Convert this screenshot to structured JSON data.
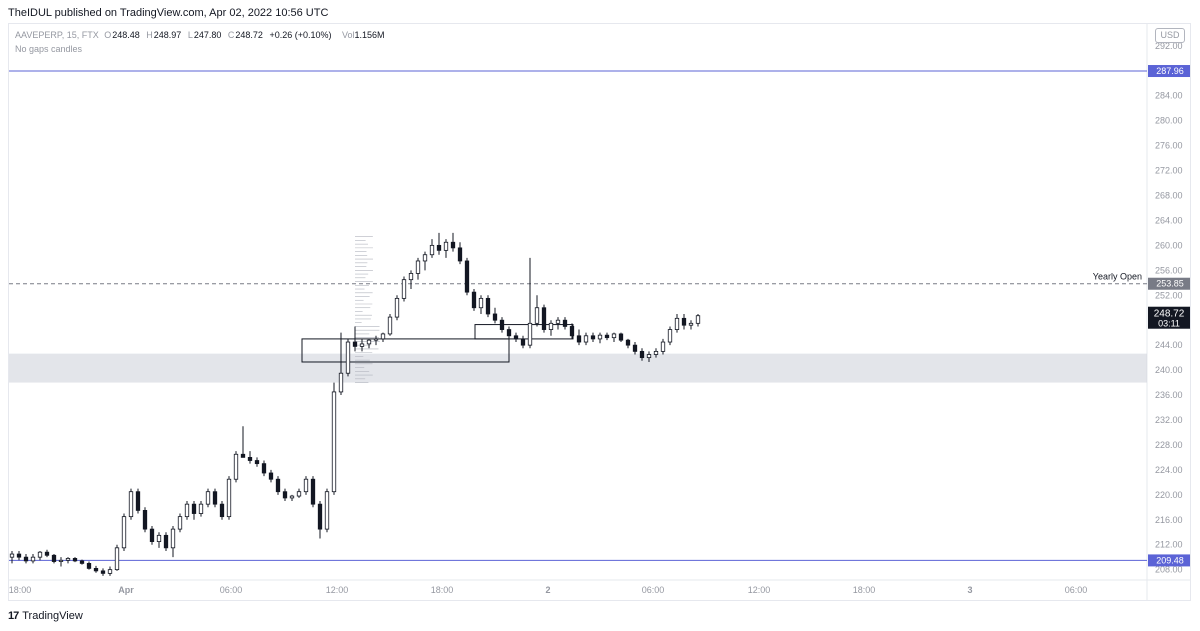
{
  "header": {
    "text": "TheIDUL published on TradingView.com, Apr 02, 2022 10:56 UTC"
  },
  "legend": {
    "symbol": "AAVEPERP, 15, FTX",
    "open_label": "O",
    "open": "248.48",
    "high_label": "H",
    "high": "248.97",
    "low_label": "L",
    "low": "247.80",
    "close_label": "C",
    "close": "248.72",
    "change": "+0.26 (+0.10%)",
    "vol_label": "Vol",
    "vol": "1.156M",
    "subtitle": "No gaps candles"
  },
  "currency_badge": "USD",
  "footer": {
    "logo": "17",
    "brand": "TradingView"
  },
  "colors": {
    "up": "#ffffff",
    "down": "#131722",
    "wick": "#131722",
    "level_line": "#5b63d6",
    "dashed": "#787b86",
    "zone": "#d1d4dc",
    "price_label_bg": "#131722"
  },
  "chart_data": {
    "type": "candlestick",
    "symbol": "AAVEPERP",
    "interval": "15",
    "exchange": "FTX",
    "y_axis": {
      "ticks": [
        "208.00",
        "212.00",
        "216.00",
        "220.00",
        "224.00",
        "228.00",
        "232.00",
        "236.00",
        "240.00",
        "244.00",
        "248.00",
        "252.00",
        "256.00",
        "260.00",
        "264.00",
        "268.00",
        "272.00",
        "276.00",
        "280.00",
        "284.00",
        "288.00",
        "292.00"
      ],
      "range": [
        206.5,
        295.5
      ]
    },
    "x_axis": {
      "ticks": [
        "18:00",
        "Apr",
        "06:00",
        "12:00",
        "18:00",
        "2",
        "06:00",
        "12:00",
        "18:00",
        "3",
        "06:00"
      ]
    },
    "horizontal_levels": [
      {
        "value": 287.96,
        "label": "287.96",
        "style": "solid"
      },
      {
        "value": 209.48,
        "label": "209.48",
        "style": "solid"
      },
      {
        "value": 253.85,
        "label": "253.85",
        "style": "dashed",
        "annotation": "Yearly Open"
      }
    ],
    "zones": [
      {
        "from": 238.0,
        "to": 242.0
      }
    ],
    "last_price": {
      "value": 248.72,
      "label": "248.72",
      "countdown": "03:11"
    },
    "rectangles": [
      {
        "from_bar": 40,
        "to_bar": 56,
        "top": 245.0,
        "bottom": 241.3
      },
      {
        "from_bar": 66,
        "to_bar": 80,
        "top": 247.3,
        "bottom": 245.0
      }
    ],
    "candles": [
      [
        210,
        211,
        209,
        210.5
      ],
      [
        210.5,
        211,
        209.5,
        210
      ],
      [
        210,
        210.5,
        209,
        209.4
      ],
      [
        209.4,
        210.5,
        209,
        210
      ],
      [
        210,
        211,
        209.5,
        210.8
      ],
      [
        210.8,
        211.2,
        210,
        210.3
      ],
      [
        210.3,
        210.5,
        209,
        209.3
      ],
      [
        209.3,
        210,
        208.5,
        209.5
      ],
      [
        209.5,
        210,
        209,
        209.8
      ],
      [
        209.8,
        210,
        209.2,
        209.4
      ],
      [
        209.4,
        209.6,
        208.8,
        209
      ],
      [
        209,
        209.3,
        208,
        208.2
      ],
      [
        208.2,
        208.6,
        207.5,
        207.8
      ],
      [
        207.8,
        208.2,
        207,
        207.4
      ],
      [
        207.4,
        208.5,
        207,
        208
      ],
      [
        208,
        212,
        207.8,
        211.5
      ],
      [
        211.5,
        217,
        211,
        216.5
      ],
      [
        216.5,
        221,
        216,
        220.5
      ],
      [
        220.5,
        221,
        217,
        217.5
      ],
      [
        217.5,
        218,
        214,
        214.5
      ],
      [
        214.5,
        215,
        212,
        212.5
      ],
      [
        212.5,
        214,
        211.5,
        213.5
      ],
      [
        213.5,
        214,
        211,
        211.5
      ],
      [
        211.5,
        215,
        210,
        214.5
      ],
      [
        214.5,
        217,
        214,
        216.5
      ],
      [
        216.5,
        219,
        216,
        218.5
      ],
      [
        218.5,
        219,
        216,
        217
      ],
      [
        217,
        219,
        216.5,
        218.5
      ],
      [
        218.5,
        221,
        218,
        220.5
      ],
      [
        220.5,
        221,
        218,
        218.5
      ],
      [
        218.5,
        219,
        216,
        216.5
      ],
      [
        216.5,
        223,
        216,
        222.5
      ],
      [
        222.5,
        227,
        222,
        226.5
      ],
      [
        226.5,
        231,
        226,
        226
      ],
      [
        226,
        227,
        225,
        225.5
      ],
      [
        225.5,
        226,
        224.5,
        225
      ],
      [
        225,
        225.5,
        223,
        223.5
      ],
      [
        223.5,
        224,
        222,
        222.5
      ],
      [
        222.5,
        223,
        220,
        220.5
      ],
      [
        220.5,
        221,
        219,
        219.5
      ],
      [
        219.5,
        220,
        219,
        219.8
      ],
      [
        219.8,
        221,
        219.5,
        220.5
      ],
      [
        220.5,
        223,
        220,
        222.5
      ],
      [
        222.5,
        223,
        218,
        218.5
      ],
      [
        218.5,
        219,
        213,
        214.5
      ],
      [
        214.5,
        221,
        214,
        220.5
      ],
      [
        220.5,
        238,
        220,
        236.5
      ],
      [
        236.5,
        246,
        236,
        239.5
      ],
      [
        239.5,
        245,
        239,
        244.5
      ],
      [
        244.5,
        247,
        243,
        243.8
      ]
    ]
  }
}
